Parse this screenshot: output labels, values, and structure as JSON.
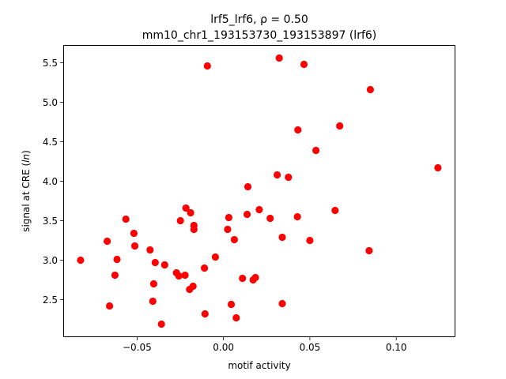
{
  "chart_data": {
    "type": "scatter",
    "title_line1": "lrf5_lrf6, ρ = 0.50",
    "title_line2": "mm10_chr1_193153730_193153897 (lrf6)",
    "xlabel": "motif activity",
    "ylabel_main": "signal at CRE (",
    "ylabel_italic": "ln",
    "ylabel_end": ")",
    "xlim": [
      -0.0925,
      0.134
    ],
    "ylim": [
      2.03,
      5.72
    ],
    "xticks": [
      {
        "value": -0.05,
        "label": "−0.05"
      },
      {
        "value": 0.0,
        "label": "0.00"
      },
      {
        "value": 0.05,
        "label": "0.05"
      },
      {
        "value": 0.1,
        "label": "0.10"
      }
    ],
    "yticks": [
      {
        "value": 2.5,
        "label": "2.5"
      },
      {
        "value": 3.0,
        "label": "3.0"
      },
      {
        "value": 3.5,
        "label": "3.5"
      },
      {
        "value": 4.0,
        "label": "4.0"
      },
      {
        "value": 4.5,
        "label": "4.5"
      },
      {
        "value": 5.0,
        "label": "5.0"
      },
      {
        "value": 5.5,
        "label": "5.5"
      }
    ],
    "marker_color": "#ff0000",
    "grid": false,
    "points": [
      {
        "x": -0.0827,
        "y": 3.0
      },
      {
        "x": -0.0673,
        "y": 3.24
      },
      {
        "x": -0.0659,
        "y": 2.42
      },
      {
        "x": -0.0628,
        "y": 2.81
      },
      {
        "x": -0.0616,
        "y": 3.01
      },
      {
        "x": -0.0565,
        "y": 3.52
      },
      {
        "x": -0.0518,
        "y": 3.34
      },
      {
        "x": -0.0513,
        "y": 3.18
      },
      {
        "x": -0.0425,
        "y": 3.13
      },
      {
        "x": -0.0409,
        "y": 2.48
      },
      {
        "x": -0.0404,
        "y": 2.7
      },
      {
        "x": -0.0395,
        "y": 2.97
      },
      {
        "x": -0.0359,
        "y": 2.19
      },
      {
        "x": -0.034,
        "y": 2.94
      },
      {
        "x": -0.0272,
        "y": 2.84
      },
      {
        "x": -0.0258,
        "y": 2.8
      },
      {
        "x": -0.0249,
        "y": 3.5
      },
      {
        "x": -0.0222,
        "y": 2.81
      },
      {
        "x": -0.0217,
        "y": 3.66
      },
      {
        "x": -0.0196,
        "y": 2.63
      },
      {
        "x": -0.019,
        "y": 3.6
      },
      {
        "x": -0.0176,
        "y": 2.67
      },
      {
        "x": -0.0171,
        "y": 3.44
      },
      {
        "x": -0.0171,
        "y": 3.39
      },
      {
        "x": -0.011,
        "y": 2.9
      },
      {
        "x": -0.0107,
        "y": 2.32
      },
      {
        "x": -0.0093,
        "y": 5.46
      },
      {
        "x": -0.0047,
        "y": 3.04
      },
      {
        "x": 0.0024,
        "y": 3.39
      },
      {
        "x": 0.0031,
        "y": 3.54
      },
      {
        "x": 0.0045,
        "y": 2.44
      },
      {
        "x": 0.0063,
        "y": 3.26
      },
      {
        "x": 0.0074,
        "y": 2.27
      },
      {
        "x": 0.011,
        "y": 2.77
      },
      {
        "x": 0.0137,
        "y": 3.58
      },
      {
        "x": 0.0141,
        "y": 3.93
      },
      {
        "x": 0.0172,
        "y": 2.75
      },
      {
        "x": 0.0185,
        "y": 2.78
      },
      {
        "x": 0.0207,
        "y": 3.64
      },
      {
        "x": 0.027,
        "y": 3.53
      },
      {
        "x": 0.0311,
        "y": 4.08
      },
      {
        "x": 0.0323,
        "y": 5.56
      },
      {
        "x": 0.034,
        "y": 2.45
      },
      {
        "x": 0.034,
        "y": 3.29
      },
      {
        "x": 0.0376,
        "y": 4.05
      },
      {
        "x": 0.0428,
        "y": 3.55
      },
      {
        "x": 0.0431,
        "y": 4.65
      },
      {
        "x": 0.0466,
        "y": 5.48
      },
      {
        "x": 0.05,
        "y": 3.25
      },
      {
        "x": 0.0535,
        "y": 4.39
      },
      {
        "x": 0.0646,
        "y": 3.63
      },
      {
        "x": 0.0673,
        "y": 4.7
      },
      {
        "x": 0.0843,
        "y": 3.12
      },
      {
        "x": 0.085,
        "y": 5.16
      },
      {
        "x": 0.1241,
        "y": 4.17
      }
    ]
  }
}
